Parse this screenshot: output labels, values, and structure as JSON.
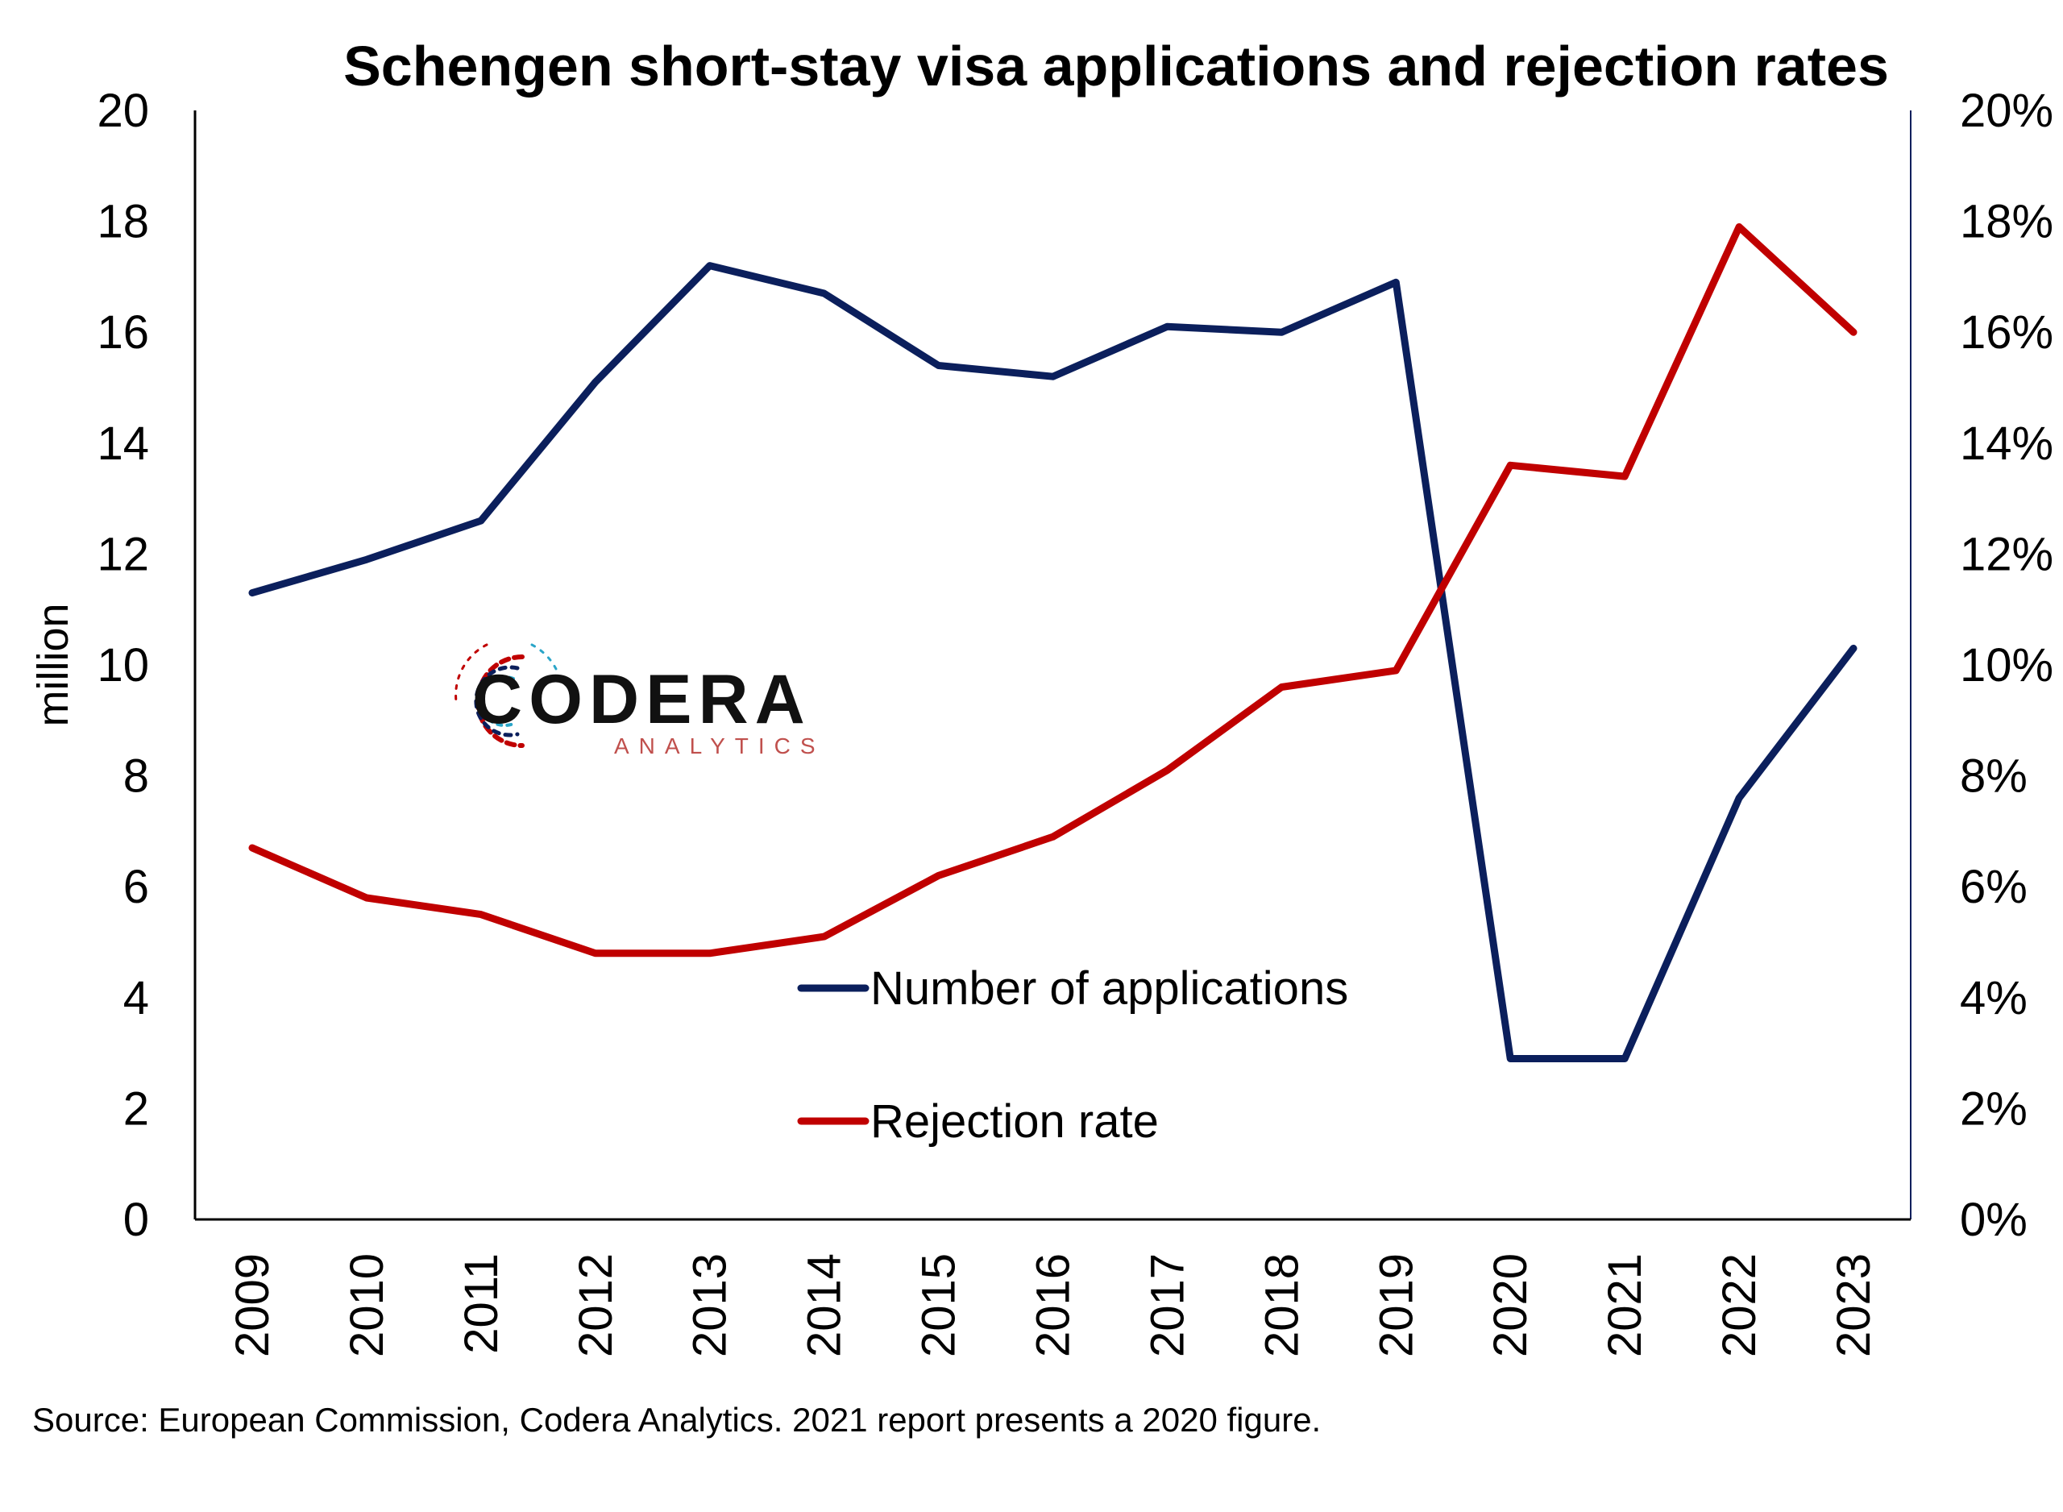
{
  "chart_data": {
    "type": "line",
    "title": "Schengen short-stay visa applications and rejection rates",
    "ylabel": "million",
    "y2label": "",
    "x": [
      "2009",
      "2010",
      "2011",
      "2012",
      "2013",
      "2014",
      "2015",
      "2016",
      "2017",
      "2018",
      "2019",
      "2020",
      "2021",
      "2022",
      "2023"
    ],
    "ylim": [
      0,
      20
    ],
    "y2lim": [
      0,
      20
    ],
    "yticks": [
      "0",
      "2",
      "4",
      "6",
      "8",
      "10",
      "12",
      "14",
      "16",
      "18",
      "20"
    ],
    "y2ticks": [
      "0%",
      "2%",
      "4%",
      "6%",
      "8%",
      "10%",
      "12%",
      "14%",
      "16%",
      "18%",
      "20%"
    ],
    "grid": false,
    "legend_position": "center-bottom",
    "series": [
      {
        "name": "Number of applications",
        "axis": "left",
        "color": "#0b1f5c",
        "values": [
          11.3,
          11.9,
          12.6,
          15.1,
          17.2,
          16.7,
          15.4,
          15.2,
          16.1,
          16.0,
          16.9,
          2.9,
          2.9,
          7.6,
          10.3
        ]
      },
      {
        "name": "Rejection rate",
        "axis": "right",
        "unit": "%",
        "color": "#c00000",
        "values": [
          6.7,
          5.8,
          5.5,
          4.8,
          4.8,
          5.1,
          6.2,
          6.9,
          8.1,
          9.6,
          9.9,
          13.6,
          13.4,
          17.9,
          16.0
        ]
      }
    ],
    "source": "Source: European Commission, Codera Analytics. 2021 report presents a 2020 figure."
  },
  "logo": {
    "name": "CODERA",
    "tagline": "ANALYTICS",
    "colors": [
      "#c00000",
      "#0b1f5c",
      "#2aa5c8"
    ]
  },
  "colors": {
    "axis": "#000000",
    "right_axis": "#0b1f5c"
  }
}
